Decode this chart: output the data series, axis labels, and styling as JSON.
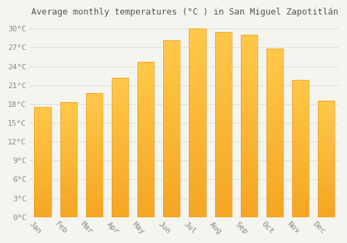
{
  "title": "Average monthly temperatures (°C ) in San Miguel Zapotitlán",
  "months": [
    "Jan",
    "Feb",
    "Mar",
    "Apr",
    "May",
    "Jun",
    "Jul",
    "Aug",
    "Sep",
    "Oct",
    "Nov",
    "Dec"
  ],
  "values": [
    17.5,
    18.3,
    19.7,
    22.2,
    24.7,
    28.2,
    30.0,
    29.5,
    29.0,
    26.8,
    21.8,
    18.5
  ],
  "bar_color_top": "#FFC84A",
  "bar_color_bottom": "#F5A623",
  "background_color": "#F5F5F0",
  "grid_color": "#E0E0D8",
  "ylim": [
    0,
    31
  ],
  "yticks": [
    0,
    3,
    6,
    9,
    12,
    15,
    18,
    21,
    24,
    27,
    30
  ],
  "title_fontsize": 9,
  "tick_fontsize": 8,
  "title_color": "#555550",
  "tick_color": "#888880",
  "xlabel_rotation": -45
}
